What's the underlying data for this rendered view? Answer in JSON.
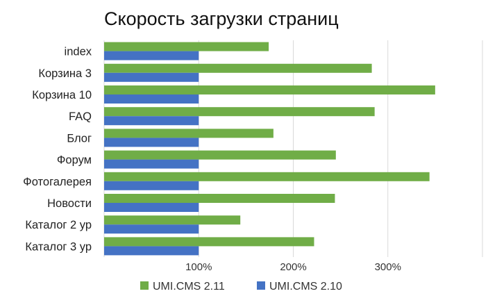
{
  "chart_data": {
    "type": "bar",
    "orientation": "horizontal",
    "title": "Скорость загрузки страниц",
    "categories": [
      "index",
      "Корзина 3",
      "Корзина 10",
      "FAQ",
      "Блог",
      "Форум",
      "Фотогалерея",
      "Новости",
      "Каталог 2 ур",
      "Каталог 3 ур"
    ],
    "series": [
      {
        "name": "UMI.CMS 2.11",
        "color": "#70ad47",
        "values": [
          174,
          283,
          350,
          286,
          179,
          245,
          344,
          244,
          144,
          222
        ]
      },
      {
        "name": "UMI.CMS 2.10",
        "color": "#4472c4",
        "values": [
          100,
          100,
          100,
          100,
          100,
          100,
          100,
          100,
          100,
          100
        ]
      }
    ],
    "xaxis": {
      "ticks": [
        100,
        200,
        300
      ],
      "tick_labels": [
        "100%",
        "200%",
        "300%"
      ],
      "xlim": [
        0,
        400
      ]
    },
    "grid": true,
    "legend_position": "bottom"
  }
}
